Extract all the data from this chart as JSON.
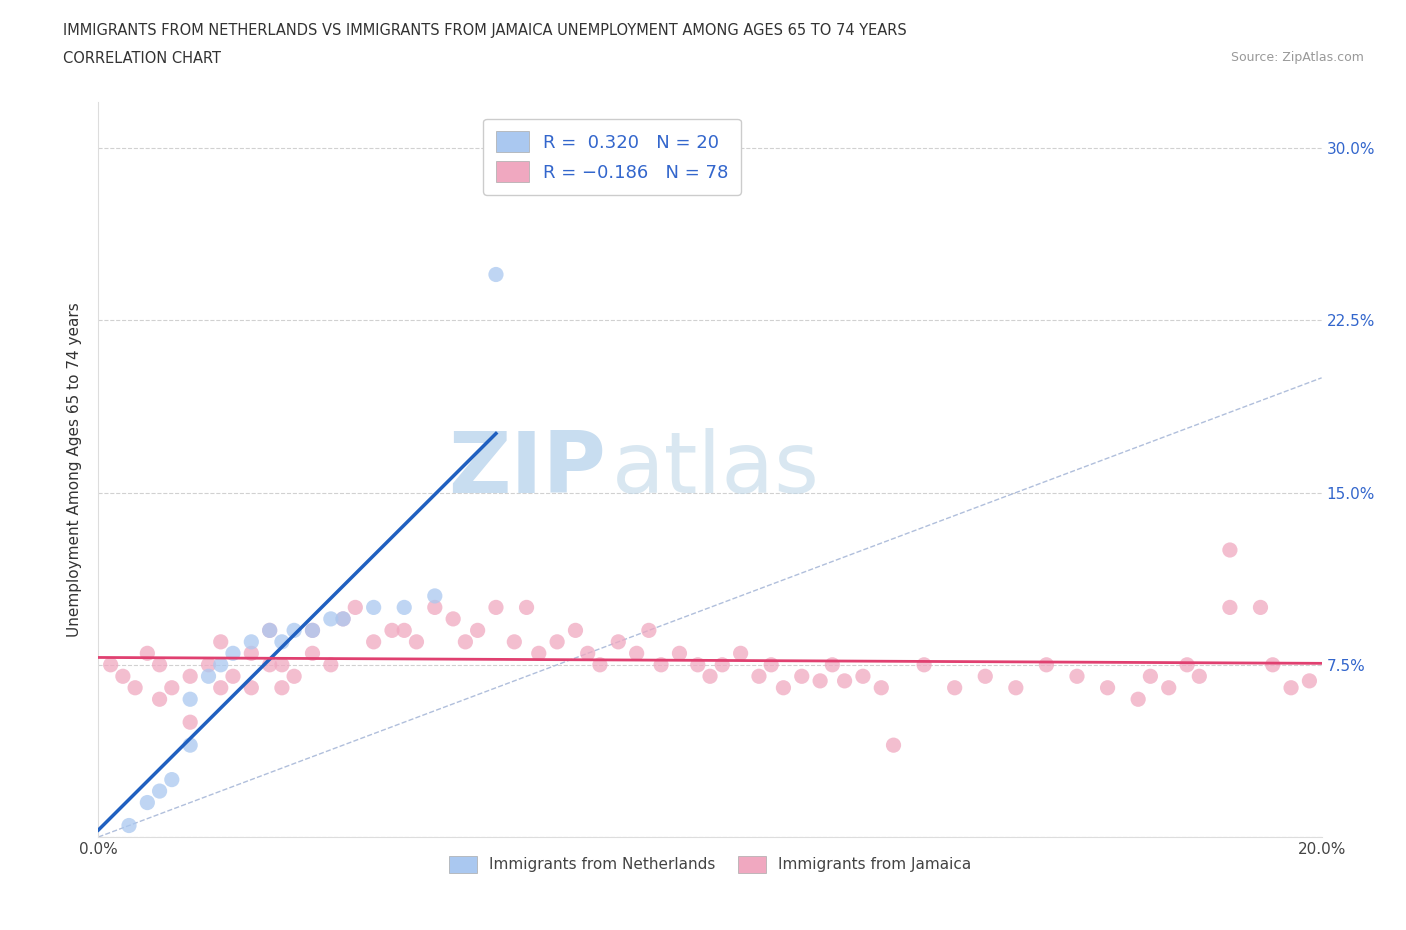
{
  "title_line1": "IMMIGRANTS FROM NETHERLANDS VS IMMIGRANTS FROM JAMAICA UNEMPLOYMENT AMONG AGES 65 TO 74 YEARS",
  "title_line2": "CORRELATION CHART",
  "source_text": "Source: ZipAtlas.com",
  "ylabel": "Unemployment Among Ages 65 to 74 years",
  "xlim": [
    0.0,
    0.2
  ],
  "ylim": [
    0.0,
    0.32
  ],
  "xticks": [
    0.0,
    0.05,
    0.1,
    0.15,
    0.2
  ],
  "xticklabels": [
    "0.0%",
    "",
    "",
    "",
    "20.0%"
  ],
  "yticks": [
    0.0,
    0.075,
    0.15,
    0.225,
    0.3
  ],
  "yticklabels": [
    "",
    "7.5%",
    "15.0%",
    "22.5%",
    "30.0%"
  ],
  "watermark_zip": "ZIP",
  "watermark_atlas": "atlas",
  "color_netherlands": "#aac8f0",
  "color_jamaica": "#f0a8c0",
  "color_netherlands_line": "#2060c0",
  "color_jamaica_line": "#e04070",
  "color_diagonal": "#a8b8d8",
  "nl_x": [
    0.005,
    0.008,
    0.01,
    0.012,
    0.015,
    0.015,
    0.018,
    0.02,
    0.022,
    0.025,
    0.028,
    0.03,
    0.032,
    0.035,
    0.038,
    0.04,
    0.045,
    0.05,
    0.055,
    0.065
  ],
  "nl_y": [
    0.005,
    0.015,
    0.02,
    0.025,
    0.04,
    0.06,
    0.07,
    0.075,
    0.08,
    0.085,
    0.09,
    0.085,
    0.09,
    0.09,
    0.095,
    0.095,
    0.1,
    0.1,
    0.105,
    0.245
  ],
  "jm_x": [
    0.002,
    0.004,
    0.006,
    0.008,
    0.01,
    0.01,
    0.012,
    0.015,
    0.015,
    0.018,
    0.02,
    0.02,
    0.022,
    0.025,
    0.025,
    0.028,
    0.028,
    0.03,
    0.03,
    0.032,
    0.035,
    0.035,
    0.038,
    0.04,
    0.042,
    0.045,
    0.048,
    0.05,
    0.052,
    0.055,
    0.058,
    0.06,
    0.062,
    0.065,
    0.068,
    0.07,
    0.072,
    0.075,
    0.078,
    0.08,
    0.082,
    0.085,
    0.088,
    0.09,
    0.092,
    0.095,
    0.098,
    0.1,
    0.102,
    0.105,
    0.108,
    0.11,
    0.112,
    0.115,
    0.118,
    0.12,
    0.122,
    0.125,
    0.128,
    0.13,
    0.135,
    0.14,
    0.145,
    0.15,
    0.155,
    0.16,
    0.165,
    0.17,
    0.172,
    0.175,
    0.178,
    0.18,
    0.185,
    0.185,
    0.19,
    0.192,
    0.195,
    0.198
  ],
  "jm_y": [
    0.075,
    0.07,
    0.065,
    0.08,
    0.075,
    0.06,
    0.065,
    0.07,
    0.05,
    0.075,
    0.065,
    0.085,
    0.07,
    0.08,
    0.065,
    0.09,
    0.075,
    0.075,
    0.065,
    0.07,
    0.09,
    0.08,
    0.075,
    0.095,
    0.1,
    0.085,
    0.09,
    0.09,
    0.085,
    0.1,
    0.095,
    0.085,
    0.09,
    0.1,
    0.085,
    0.1,
    0.08,
    0.085,
    0.09,
    0.08,
    0.075,
    0.085,
    0.08,
    0.09,
    0.075,
    0.08,
    0.075,
    0.07,
    0.075,
    0.08,
    0.07,
    0.075,
    0.065,
    0.07,
    0.068,
    0.075,
    0.068,
    0.07,
    0.065,
    0.04,
    0.075,
    0.065,
    0.07,
    0.065,
    0.075,
    0.07,
    0.065,
    0.06,
    0.07,
    0.065,
    0.075,
    0.07,
    0.125,
    0.1,
    0.1,
    0.075,
    0.065,
    0.068
  ]
}
